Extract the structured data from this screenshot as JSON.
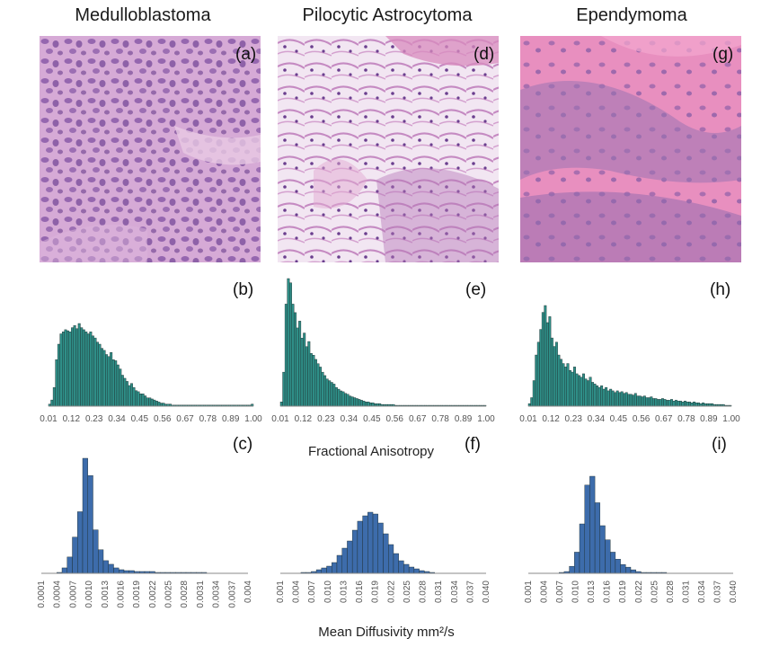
{
  "figure": {
    "column_titles": [
      "Medulloblastoma",
      "Pilocytic Astrocytoma",
      "Ependymoma"
    ],
    "panel_labels": [
      "(a)",
      "(b)",
      "(c)",
      "(d)",
      "(e)",
      "(f)",
      "(g)",
      "(h)",
      "(i)"
    ],
    "fa_axis_title": "Fractional Anisotropy",
    "md_axis_title": "Mean Diffusivity mm²/s",
    "histology_colors": {
      "medulloblastoma": "#c79ac7",
      "pilocytic": "#e8d6ee",
      "ependymoma": "#e47fb2"
    }
  },
  "chart_data": [
    {
      "panel": "(b)",
      "type": "bar",
      "measure": "Fractional Anisotropy",
      "color": "#2f8f88",
      "tick_labels": [
        "0.01",
        "0.12",
        "0.23",
        "0.34",
        "0.45",
        "0.56",
        "0.67",
        "0.78",
        "0.89",
        "1.00"
      ],
      "xlim": [
        0.01,
        1.0
      ],
      "values": [
        2,
        6,
        18,
        45,
        60,
        70,
        72,
        74,
        73,
        72,
        76,
        78,
        75,
        80,
        76,
        74,
        72,
        70,
        72,
        68,
        66,
        62,
        60,
        56,
        54,
        50,
        48,
        52,
        45,
        44,
        40,
        36,
        30,
        27,
        24,
        20,
        22,
        18,
        15,
        14,
        12,
        12,
        10,
        8,
        8,
        7,
        6,
        5,
        4,
        3,
        3,
        2,
        2,
        2,
        1,
        1,
        1,
        1,
        1,
        1,
        1,
        1,
        1,
        1,
        1,
        1,
        1,
        1,
        1,
        1,
        1,
        1,
        1,
        1,
        1,
        1,
        1,
        1,
        1,
        1,
        1,
        1,
        1,
        1,
        1,
        1,
        1,
        1,
        1,
        2
      ]
    },
    {
      "panel": "(e)",
      "type": "bar",
      "measure": "Fractional Anisotropy",
      "color": "#2f8f88",
      "tick_labels": [
        "0.01",
        "0.12",
        "0.23",
        "0.34",
        "0.45",
        "0.56",
        "0.67",
        "0.78",
        "0.89",
        "1.00"
      ],
      "xlim": [
        0.01,
        1.0
      ],
      "values": [
        5,
        40,
        120,
        150,
        145,
        120,
        110,
        92,
        100,
        80,
        86,
        70,
        76,
        62,
        60,
        55,
        50,
        46,
        40,
        36,
        32,
        30,
        28,
        26,
        22,
        20,
        18,
        17,
        15,
        14,
        12,
        11,
        10,
        9,
        8,
        7,
        6,
        5,
        5,
        4,
        4,
        3,
        3,
        3,
        2,
        2,
        2,
        2,
        2,
        2,
        1,
        1,
        1,
        1,
        1,
        1,
        1,
        1,
        1,
        1,
        1,
        1,
        1,
        1,
        1,
        1,
        1,
        1,
        1,
        1,
        1,
        1,
        1,
        1,
        1,
        1,
        1,
        1,
        1,
        1,
        1,
        1,
        1,
        1,
        1,
        1,
        1,
        1,
        1,
        1
      ]
    },
    {
      "panel": "(h)",
      "type": "bar",
      "measure": "Fractional Anisotropy",
      "color": "#2f8f88",
      "tick_labels": [
        "0.01",
        "0.12",
        "0.23",
        "0.34",
        "0.45",
        "0.56",
        "0.67",
        "0.78",
        "0.89",
        "1.00"
      ],
      "xlim": [
        0.01,
        1.0
      ],
      "values": [
        3,
        10,
        30,
        60,
        75,
        90,
        110,
        118,
        98,
        105,
        80,
        70,
        75,
        60,
        55,
        50,
        46,
        50,
        42,
        40,
        46,
        38,
        36,
        34,
        38,
        32,
        30,
        34,
        28,
        26,
        24,
        22,
        24,
        20,
        22,
        18,
        20,
        18,
        16,
        18,
        16,
        17,
        15,
        16,
        14,
        14,
        13,
        15,
        12,
        12,
        11,
        12,
        10,
        10,
        11,
        9,
        9,
        8,
        8,
        9,
        8,
        7,
        7,
        8,
        6,
        7,
        6,
        6,
        5,
        6,
        5,
        5,
        4,
        5,
        4,
        4,
        3,
        4,
        3,
        3,
        3,
        3,
        2,
        2,
        2,
        2,
        2,
        1,
        1,
        1
      ]
    },
    {
      "panel": "(c)",
      "type": "bar",
      "measure": "Mean Diffusivity",
      "color": "#3d6cab",
      "tick_labels": [
        "0.0001",
        "0.0004",
        "0.0007",
        "0.0010",
        "0.0013",
        "0.0016",
        "0.0019",
        "0.0022",
        "0.0025",
        "0.0028",
        "0.0031",
        "0.0034",
        "0.0037",
        "0.004"
      ],
      "xlim": [
        0.0001,
        0.004
      ],
      "values": [
        0,
        0,
        0,
        1,
        6,
        18,
        40,
        68,
        127,
        108,
        48,
        26,
        14,
        10,
        6,
        4,
        3,
        3,
        2,
        2,
        2,
        2,
        1,
        1,
        1,
        1,
        1,
        1,
        1,
        1,
        1,
        1,
        0,
        0,
        0,
        0,
        0,
        0,
        0,
        0
      ]
    },
    {
      "panel": "(f)",
      "type": "bar",
      "measure": "Mean Diffusivity",
      "color": "#3d6cab",
      "tick_labels": [
        "0.001",
        "0.004",
        "0.007",
        "0.010",
        "0.013",
        "0.016",
        "0.019",
        "0.022",
        "0.025",
        "0.028",
        "0.031",
        "0.034",
        "0.037",
        "0.040"
      ],
      "xlim": [
        0.001,
        0.04
      ],
      "values": [
        0,
        0,
        0,
        0,
        1,
        1,
        2,
        4,
        6,
        8,
        12,
        20,
        28,
        36,
        48,
        58,
        64,
        68,
        66,
        56,
        44,
        32,
        22,
        14,
        10,
        7,
        5,
        3,
        2,
        1,
        0,
        0,
        0,
        0,
        0,
        0,
        0,
        0,
        0,
        0
      ]
    },
    {
      "panel": "(i)",
      "type": "bar",
      "measure": "Mean Diffusivity",
      "color": "#3d6cab",
      "tick_labels": [
        "0.001",
        "0.004",
        "0.007",
        "0.010",
        "0.013",
        "0.016",
        "0.019",
        "0.022",
        "0.025",
        "0.028",
        "0.031",
        "0.034",
        "0.037",
        "0.040"
      ],
      "xlim": [
        0.001,
        0.04
      ],
      "values": [
        0,
        0,
        0,
        0,
        0,
        0,
        1,
        2,
        8,
        24,
        56,
        100,
        110,
        80,
        54,
        38,
        24,
        16,
        10,
        7,
        4,
        2,
        1,
        1,
        1,
        1,
        1,
        0,
        0,
        0,
        0,
        0,
        0,
        0,
        0,
        0,
        0,
        0,
        0,
        0
      ]
    }
  ]
}
